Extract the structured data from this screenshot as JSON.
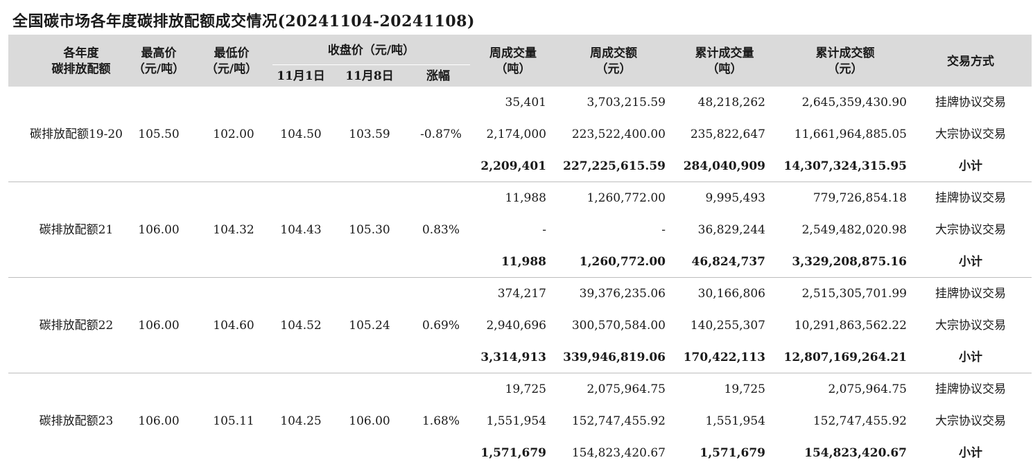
{
  "title": "全国碳市场各年度碳排放配额成交情况(20241104-20241108)",
  "header": {
    "year_line1": "各年度",
    "year_line2": "碳排放配额",
    "high_line1": "最高价",
    "high_line2": "（元/吨）",
    "low_line1": "最低价",
    "low_line2": "（元/吨）",
    "close": "收盘价（元/吨）",
    "nov1": "11月1日",
    "nov8": "11月8日",
    "change": "涨幅",
    "wvol_line1": "周成交量",
    "wvol_line2": "（吨）",
    "wamt_line1": "周成交额",
    "wamt_line2": "（元）",
    "cvol_line1": "累计成交量",
    "cvol_line2": "（吨）",
    "camt_line1": "累计成交额",
    "camt_line2": "（元）",
    "method": "交易方式"
  },
  "groups": [
    {
      "name": "碳排放配额19-20",
      "high": "105.50",
      "low": "102.00",
      "nov1": "104.50",
      "nov8": "103.59",
      "change": "-0.87%",
      "rows": [
        {
          "vol": "35,401",
          "amt": "3,703,215.59",
          "cvol": "48,218,262",
          "camt": "2,645,359,430.90",
          "type": "挂牌协议交易"
        },
        {
          "vol": "2,174,000",
          "amt": "223,522,400.00",
          "cvol": "235,822,647",
          "camt": "11,661,964,885.05",
          "type": "大宗协议交易"
        },
        {
          "vol": "2,209,401",
          "amt": "227,225,615.59",
          "cvol": "284,040,909",
          "camt": "14,307,324,315.95",
          "type": "小计"
        }
      ]
    },
    {
      "name": "碳排放配额21",
      "high": "106.00",
      "low": "104.32",
      "nov1": "104.43",
      "nov8": "105.30",
      "change": "0.83%",
      "rows": [
        {
          "vol": "11,988",
          "amt": "1,260,772.00",
          "cvol": "9,995,493",
          "camt": "779,726,854.18",
          "type": "挂牌协议交易"
        },
        {
          "vol": "-",
          "amt": "-",
          "cvol": "36,829,244",
          "camt": "2,549,482,020.98",
          "type": "大宗协议交易"
        },
        {
          "vol": "11,988",
          "amt": "1,260,772.00",
          "cvol": "46,824,737",
          "camt": "3,329,208,875.16",
          "type": "小计"
        }
      ]
    },
    {
      "name": "碳排放配额22",
      "high": "106.00",
      "low": "104.60",
      "nov1": "104.52",
      "nov8": "105.24",
      "change": "0.69%",
      "rows": [
        {
          "vol": "374,217",
          "amt": "39,376,235.06",
          "cvol": "30,166,806",
          "camt": "2,515,305,701.99",
          "type": "挂牌协议交易"
        },
        {
          "vol": "2,940,696",
          "amt": "300,570,584.00",
          "cvol": "140,255,307",
          "camt": "10,291,863,562.22",
          "type": "大宗协议交易"
        },
        {
          "vol": "3,314,913",
          "amt": "339,946,819.06",
          "cvol": "170,422,113",
          "camt": "12,807,169,264.21",
          "type": "小计"
        }
      ]
    },
    {
      "name": "碳排放配额23",
      "high": "106.00",
      "low": "105.11",
      "nov1": "104.25",
      "nov8": "106.00",
      "change": "1.68%",
      "rows": [
        {
          "vol": "19,725",
          "amt": "2,075,964.75",
          "cvol": "19,725",
          "camt": "2,075,964.75",
          "type": "挂牌协议交易"
        },
        {
          "vol": "1,551,954",
          "amt": "152,747,455.92",
          "cvol": "1,551,954",
          "camt": "152,747,455.92",
          "type": "大宗协议交易"
        },
        {
          "vol": "1,571,679",
          "amt": "154,823,420.67",
          "cvol": "1,571,679",
          "camt": "154,823,420.67",
          "type": "小计"
        }
      ]
    }
  ]
}
